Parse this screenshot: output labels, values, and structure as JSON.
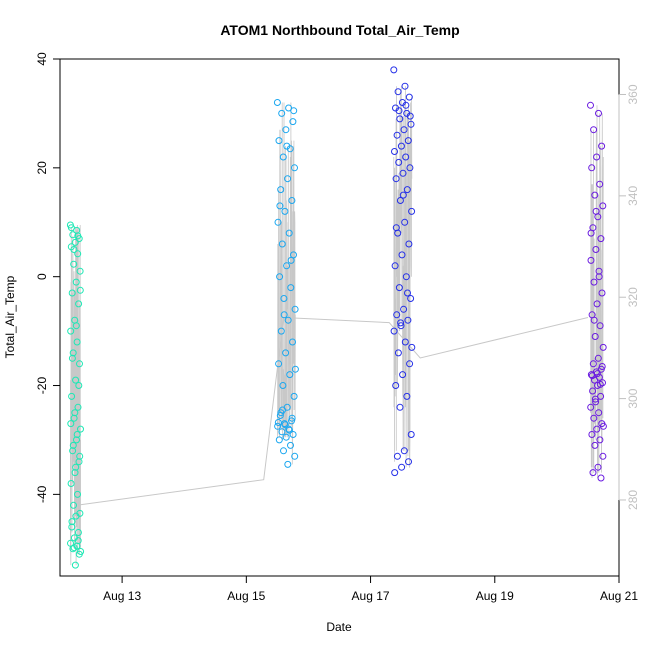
{
  "chart_data": {
    "type": "scatter",
    "title": "ATOM1 Northbound Total_Air_Temp",
    "xlabel": "Date",
    "ylabel": "Total_Air_Temp",
    "x_unit": "date",
    "xlim": [
      "2025-08-12",
      "2025-08-21"
    ],
    "ylim": [
      -55,
      40
    ],
    "x_ticks": [
      {
        "label": "Aug 13",
        "date": "2025-08-13"
      },
      {
        "label": "Aug 15",
        "date": "2025-08-15"
      },
      {
        "label": "Aug 17",
        "date": "2025-08-17"
      },
      {
        "label": "Aug 19",
        "date": "2025-08-19"
      },
      {
        "label": "Aug 21",
        "date": "2025-08-21"
      }
    ],
    "y_ticks": [
      -40,
      -20,
      0,
      20,
      40
    ],
    "y2_ticks": [
      280,
      300,
      320,
      340,
      360
    ],
    "y2_lim": [
      265,
      367
    ],
    "grid": false,
    "colors": {
      "cluster1": "#1de8b5",
      "cluster2": "#1aa7f0",
      "cluster3": "#2530e8",
      "cluster4": "#6a1be0",
      "line": "#c8c8c8",
      "axis": "#000000",
      "y2_axis": "#c0c0c0"
    },
    "series": [
      {
        "cluster": "Aug 12",
        "color": "#1de8b5",
        "x_range": [
          "2025-08-12T04:00",
          "2025-08-12T08:00"
        ],
        "y": [
          9.5,
          8.5,
          7.7,
          7.0,
          6.3,
          5.5,
          4.2,
          2.3,
          1.0,
          -1.0,
          -3.0,
          -5.0,
          -8.0,
          -10.0,
          -12.0,
          -14.0,
          -16.0,
          -19.0,
          -22.0,
          -24.0,
          -26.0,
          -28.0,
          -30.0,
          -32.0,
          -34.0,
          -36.0,
          -38.0,
          -40.0,
          -42.0,
          -43.5,
          -44.0,
          -45.0,
          -47.0,
          -48.0,
          -49.0,
          -49.5,
          -50.0,
          -51.0,
          -53.0,
          9.0,
          7.5,
          5.0,
          -2.5,
          -9.0,
          -15.0,
          -20.0,
          -25.0,
          -27.0,
          -29.0,
          -31.0,
          -33.0,
          -35.0,
          -46.0,
          -48.5,
          -49.8,
          -50.5
        ]
      },
      {
        "cluster": "Aug 15",
        "color": "#1aa7f0",
        "x_range": [
          "2025-08-15T12:00",
          "2025-08-15T19:00"
        ],
        "y": [
          32.0,
          31.0,
          30.0,
          28.5,
          27.0,
          25.0,
          23.5,
          22.0,
          20.0,
          18.0,
          16.0,
          14.0,
          12.0,
          10.0,
          8.0,
          6.0,
          4.0,
          2.0,
          0.0,
          -2.0,
          -4.0,
          -6.0,
          -8.0,
          -10.0,
          -12.0,
          -14.0,
          -16.0,
          -18.0,
          -20.0,
          -22.0,
          -24.0,
          -25.5,
          -26.5,
          -27.0,
          -27.5,
          -28.0,
          -28.5,
          -29.0,
          -29.5,
          -30.0,
          -31.0,
          -32.0,
          -33.0,
          -34.5,
          -25.0,
          -26.0,
          -27.2,
          -26.8,
          -28.2,
          -24.5,
          30.5,
          24.0,
          13.0,
          3.0,
          -7.0,
          -17.0
        ]
      },
      {
        "cluster": "Aug 17",
        "color": "#2530e8",
        "x_range": [
          "2025-08-17T09:00",
          "2025-08-17T16:00"
        ],
        "y": [
          38.0,
          35.0,
          34.0,
          33.0,
          32.0,
          31.0,
          30.0,
          29.0,
          28.0,
          27.0,
          26.0,
          25.0,
          24.0,
          23.0,
          22.0,
          21.0,
          20.0,
          19.0,
          18.0,
          16.0,
          14.0,
          12.0,
          10.0,
          8.0,
          6.0,
          4.0,
          2.0,
          0.0,
          -2.0,
          -4.0,
          -6.0,
          -7.0,
          -8.0,
          -9.0,
          -10.0,
          -12.0,
          -14.0,
          -16.0,
          -18.0,
          -20.0,
          -22.0,
          -24.0,
          -29.0,
          -32.0,
          -33.0,
          -34.0,
          -35.0,
          -36.0,
          31.5,
          30.5,
          29.5,
          15.0,
          9.0,
          -3.0,
          -8.5,
          -13.0
        ]
      },
      {
        "cluster": "Aug 20",
        "color": "#6a1be0",
        "x_range": [
          "2025-08-20T13:00",
          "2025-08-20T18:00"
        ],
        "y": [
          31.5,
          30.0,
          27.0,
          24.0,
          22.0,
          20.0,
          17.0,
          15.0,
          13.0,
          11.0,
          9.0,
          7.0,
          5.0,
          3.0,
          1.0,
          -1.0,
          -3.0,
          -5.0,
          -7.0,
          -9.0,
          -11.0,
          -13.0,
          -15.0,
          -16.0,
          -17.0,
          -17.5,
          -18.0,
          -18.5,
          -19.0,
          -19.5,
          -20.0,
          -21.0,
          -22.0,
          -23.0,
          -24.0,
          -25.0,
          -26.0,
          -27.0,
          -28.0,
          -29.0,
          -30.0,
          -31.0,
          -33.0,
          -35.0,
          -36.0,
          -37.0,
          12.0,
          8.0,
          0.0,
          -8.0,
          -16.5,
          -17.8,
          -18.2,
          -19.8,
          -22.5,
          -27.5
        ]
      }
    ],
    "line": {
      "color": "#c8c8c8",
      "axis": "right"
    }
  }
}
